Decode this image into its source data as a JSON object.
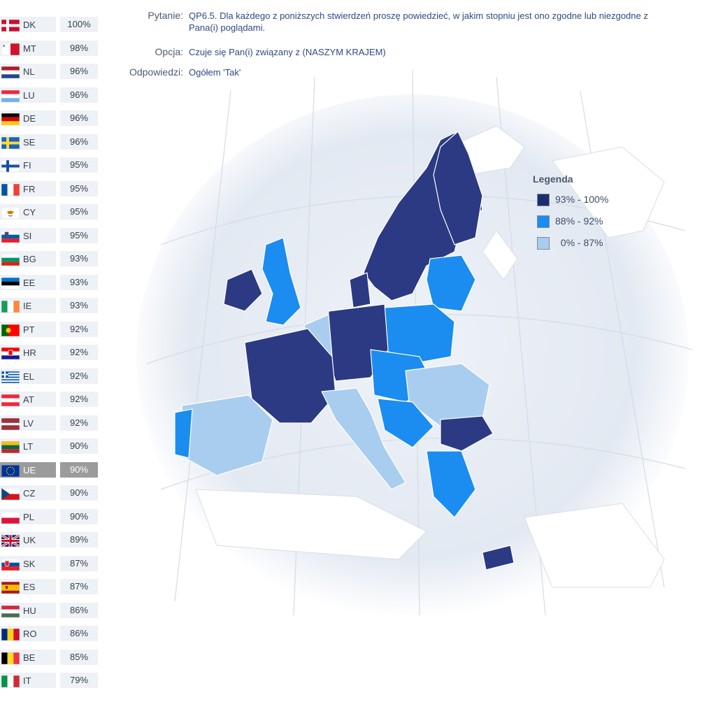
{
  "header": {
    "question_label": "Pytanie:",
    "question": "QP6.5. Dla każdego z poniższych stwierdzeń proszę powiedzieć, w jakim stopniu jest ono zgodne lub niezgodne z Pana(i) poglądami.",
    "option_label": "Opcja:",
    "option": "Czuje się Pan(i) związany z (NASZYM KRAJEM)",
    "answers_label": "Odpowiedzi:",
    "answers": "Ogółem 'Tak'"
  },
  "legend": {
    "title": "Legenda",
    "items": [
      {
        "label": "93% - 100%",
        "color": "#1f2d6e"
      },
      {
        "label": "88% - 92%",
        "color": "#1b8cf0"
      },
      {
        "label": "  0% - 87%",
        "color": "#a9cdee"
      }
    ]
  },
  "countries": [
    {
      "code": "DK",
      "value": "100%",
      "flag": "dk"
    },
    {
      "code": "MT",
      "value": "98%",
      "flag": "mt"
    },
    {
      "code": "NL",
      "value": "96%",
      "flag": "nl"
    },
    {
      "code": "LU",
      "value": "96%",
      "flag": "lu"
    },
    {
      "code": "DE",
      "value": "96%",
      "flag": "de"
    },
    {
      "code": "SE",
      "value": "96%",
      "flag": "se"
    },
    {
      "code": "FI",
      "value": "95%",
      "flag": "fi"
    },
    {
      "code": "FR",
      "value": "95%",
      "flag": "fr"
    },
    {
      "code": "CY",
      "value": "95%",
      "flag": "cy"
    },
    {
      "code": "SI",
      "value": "95%",
      "flag": "si"
    },
    {
      "code": "BG",
      "value": "93%",
      "flag": "bg"
    },
    {
      "code": "EE",
      "value": "93%",
      "flag": "ee"
    },
    {
      "code": "IE",
      "value": "93%",
      "flag": "ie"
    },
    {
      "code": "PT",
      "value": "92%",
      "flag": "pt"
    },
    {
      "code": "HR",
      "value": "92%",
      "flag": "hr"
    },
    {
      "code": "EL",
      "value": "92%",
      "flag": "el"
    },
    {
      "code": "AT",
      "value": "92%",
      "flag": "at"
    },
    {
      "code": "LV",
      "value": "92%",
      "flag": "lv"
    },
    {
      "code": "LT",
      "value": "90%",
      "flag": "lt"
    },
    {
      "code": "UE",
      "value": "90%",
      "flag": "eu",
      "highlight": true
    },
    {
      "code": "CZ",
      "value": "90%",
      "flag": "cz"
    },
    {
      "code": "PL",
      "value": "90%",
      "flag": "pl"
    },
    {
      "code": "UK",
      "value": "89%",
      "flag": "uk"
    },
    {
      "code": "SK",
      "value": "87%",
      "flag": "sk"
    },
    {
      "code": "ES",
      "value": "87%",
      "flag": "es"
    },
    {
      "code": "HU",
      "value": "86%",
      "flag": "hu"
    },
    {
      "code": "RO",
      "value": "86%",
      "flag": "ro"
    },
    {
      "code": "BE",
      "value": "85%",
      "flag": "be"
    },
    {
      "code": "IT",
      "value": "79%",
      "flag": "it"
    }
  ]
}
